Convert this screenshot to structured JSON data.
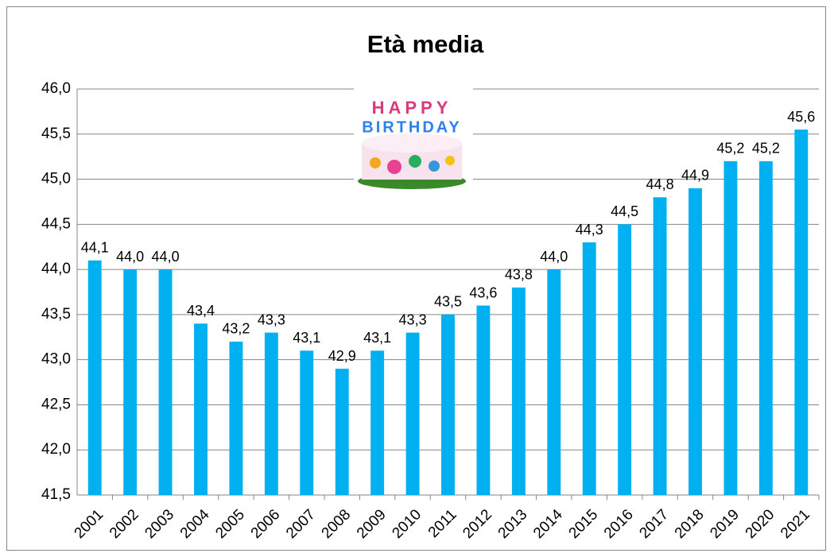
{
  "chart_data": {
    "type": "bar",
    "title": "Età media",
    "categories": [
      "2001",
      "2002",
      "2003",
      "2004",
      "2005",
      "2006",
      "2007",
      "2008",
      "2009",
      "2010",
      "2011",
      "2012",
      "2013",
      "2014",
      "2015",
      "2016",
      "2017",
      "2018",
      "2019",
      "2020",
      "2021"
    ],
    "values": [
      44.1,
      44.0,
      44.0,
      43.4,
      43.2,
      43.3,
      43.1,
      42.9,
      43.1,
      43.3,
      43.5,
      43.6,
      43.8,
      44.0,
      44.3,
      44.5,
      44.8,
      44.9,
      45.2,
      45.2,
      45.55
    ],
    "value_labels": [
      "44,1",
      "44,0",
      "44,0",
      "43,4",
      "43,2",
      "43,3",
      "43,1",
      "42,9",
      "43,1",
      "43,3",
      "43,5",
      "43,6",
      "43,8",
      "44,0",
      "44,3",
      "44,5",
      "44,8",
      "44,9",
      "45,2",
      "45,2",
      "45,6"
    ],
    "color": "#00b0f0",
    "ylim": [
      41.5,
      46.0
    ],
    "yticks": [
      {
        "value": 41.5,
        "label": "41,5"
      },
      {
        "value": 42.0,
        "label": "42,0"
      },
      {
        "value": 42.5,
        "label": "42,5"
      },
      {
        "value": 43.0,
        "label": "43,0"
      },
      {
        "value": 43.5,
        "label": "43,5"
      },
      {
        "value": 44.0,
        "label": "44,0"
      },
      {
        "value": 44.5,
        "label": "44,5"
      },
      {
        "value": 45.0,
        "label": "45,0"
      },
      {
        "value": 45.5,
        "label": "45,5"
      },
      {
        "value": 46.0,
        "label": "46,0"
      }
    ],
    "grid": true,
    "annotations": [
      "HAPPY",
      "BIRTHDAY"
    ]
  }
}
